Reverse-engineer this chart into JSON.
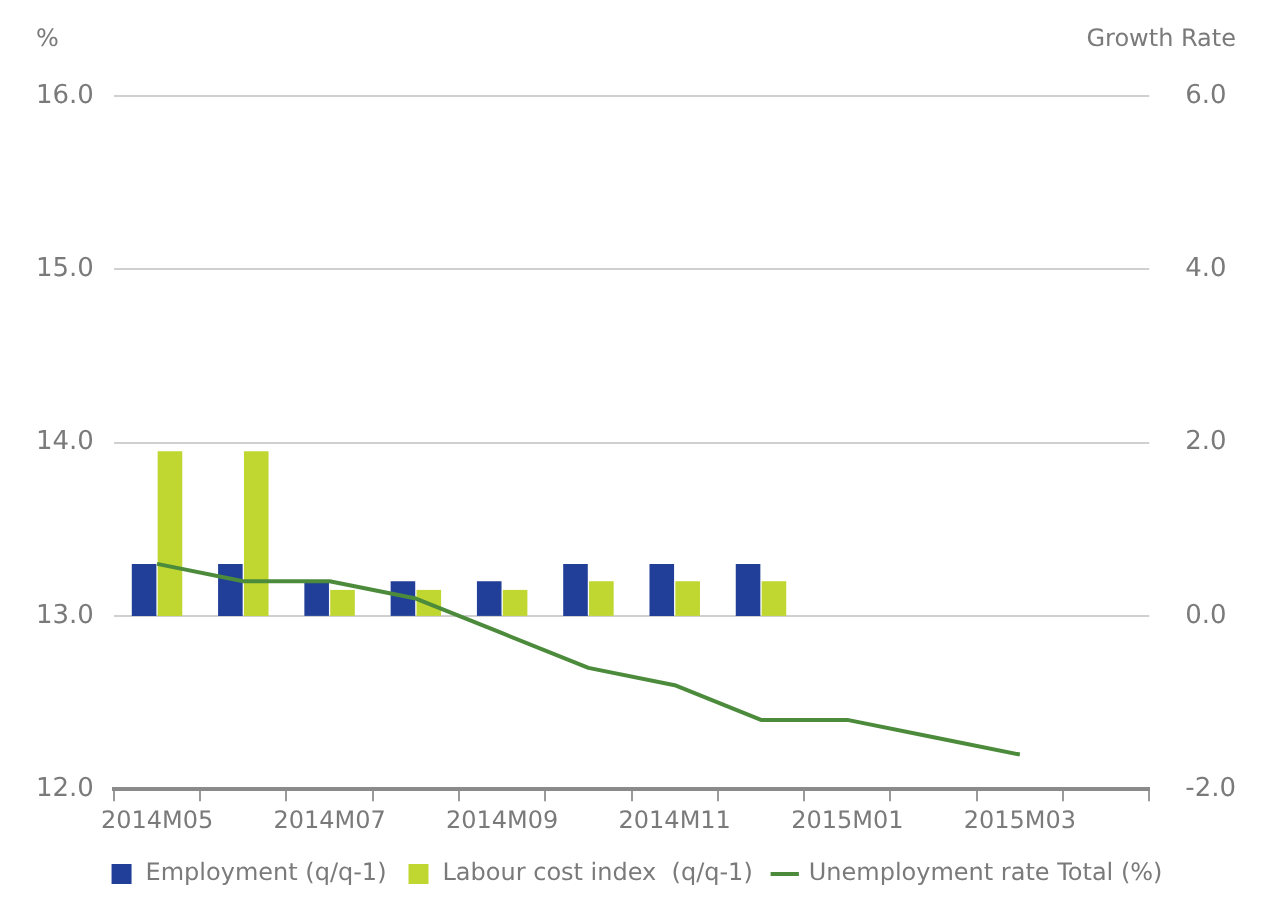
{
  "chart_data": {
    "type": "bar",
    "ylabel": "%",
    "y2label": "Growth Rate",
    "categories": [
      "2014M05",
      null,
      "2014M07",
      null,
      "2014M09",
      null,
      "2014M11",
      null,
      "2015M01",
      null,
      "2015M03",
      null
    ],
    "series": [
      {
        "name": "Employment (q/q-1)",
        "axis": "y2",
        "color": "#213f99",
        "values": [
          0.6,
          0.6,
          0.4,
          0.4,
          0.4,
          0.6,
          0.6,
          0.6,
          null,
          null,
          null,
          null
        ]
      },
      {
        "name": "Labour cost index  (q/q-1)",
        "axis": "y2",
        "color": "#bfd730",
        "values": [
          1.9,
          1.9,
          0.3,
          0.3,
          0.3,
          0.4,
          0.4,
          0.4,
          null,
          null,
          null,
          null
        ]
      },
      {
        "name": "Unemployment rate Total (%)",
        "type": "line",
        "axis": "y",
        "color": "#4c8b3b",
        "values": [
          13.3,
          13.2,
          13.2,
          13.1,
          12.9,
          12.7,
          12.6,
          12.4,
          12.4,
          12.3,
          12.2,
          null
        ]
      }
    ],
    "ylim": [
      12,
      16
    ],
    "yticks": [
      {
        "value": 12,
        "label": "12.0"
      },
      {
        "value": 13,
        "label": "13.0"
      },
      {
        "value": 14,
        "label": "14.0"
      },
      {
        "value": 15,
        "label": "15.0"
      },
      {
        "value": 16,
        "label": "16.0"
      }
    ],
    "y2lim": [
      -2,
      6
    ],
    "y2ticks": [
      {
        "value": -2,
        "label": "-2.0"
      },
      {
        "value": 0,
        "label": "0.0"
      },
      {
        "value": 2,
        "label": "2.0"
      },
      {
        "value": 4,
        "label": "4.0"
      },
      {
        "value": 6,
        "label": "6.0"
      }
    ],
    "grid": "y",
    "legend": "bottom",
    "marker": "none",
    "line_style": "solid"
  }
}
